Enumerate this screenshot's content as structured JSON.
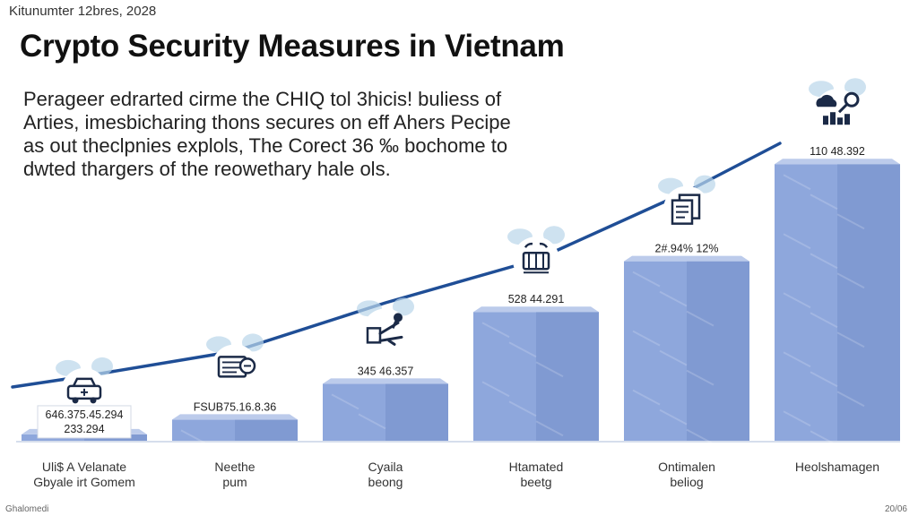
{
  "header": {
    "dateline": "Kitunumter 12bres, 2028",
    "title": "Crypto Security Measures in Vietnam",
    "description": [
      "Perageer edrarted cirme the CHIQ tol 3hicis! buliess of",
      "Arties, imesbicharing thons secures on eff Ahers Pecipe",
      "as out theclpnies explols, The Corect 36 ‰ bochome to",
      "dwted thargers of the reowethary hale ols."
    ]
  },
  "chart_data": {
    "type": "bar",
    "categories": [
      [
        "Uli$ A Velanate",
        "Gbyale irt Gomem"
      ],
      [
        "Neethe",
        "pum"
      ],
      [
        "Cyaila",
        "beong"
      ],
      [
        "Htamated",
        "beetg"
      ],
      [
        "Ontimalen",
        "beliog"
      ],
      [
        "Heolshamagen"
      ]
    ],
    "values": [
      3,
      10,
      27,
      61,
      85,
      131
    ],
    "data_labels": [
      "646.375.45.294\n233.294",
      "FSUB75.16.8.36",
      "345 46.357",
      "528 44.291",
      "2#.94% 12%",
      "110 48.392"
    ],
    "icons": [
      "car-icon",
      "wallet-card-icon",
      "hand-key-icon",
      "security-chip-icon",
      "document-stack-icon",
      "cloud-key-chart-icon"
    ],
    "trend_line": true,
    "ylim": [
      0,
      140
    ],
    "xlabel": "",
    "ylabel": "",
    "title": "Crypto Security Measures in Vietnam"
  },
  "colors": {
    "bar_front": "#8ea7dc",
    "bar_side": "#7590cb",
    "bar_top": "#bccbeb",
    "trend": "#1f4e96",
    "icon": "#1b2a47",
    "splash": "#b9d6ea"
  },
  "footer": {
    "left": "Ghalomedi",
    "right": "20/06"
  }
}
